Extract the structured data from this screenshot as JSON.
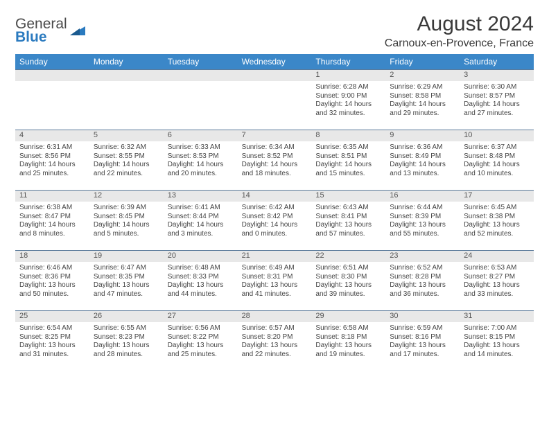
{
  "logo": {
    "text_top": "General",
    "text_bottom": "Blue"
  },
  "title": "August 2024",
  "location": "Carnoux-en-Provence, France",
  "colors": {
    "header_bg": "#3b87c8",
    "header_text": "#ffffff",
    "daynum_bg": "#e8e8e8",
    "row_border": "#5a7a9a",
    "logo_accent": "#2a7abf",
    "text": "#3a3a3a"
  },
  "weekdays": [
    "Sunday",
    "Monday",
    "Tuesday",
    "Wednesday",
    "Thursday",
    "Friday",
    "Saturday"
  ],
  "weeks": [
    [
      {
        "n": "",
        "sr": "",
        "ss": "",
        "dl": ""
      },
      {
        "n": "",
        "sr": "",
        "ss": "",
        "dl": ""
      },
      {
        "n": "",
        "sr": "",
        "ss": "",
        "dl": ""
      },
      {
        "n": "",
        "sr": "",
        "ss": "",
        "dl": ""
      },
      {
        "n": "1",
        "sr": "Sunrise: 6:28 AM",
        "ss": "Sunset: 9:00 PM",
        "dl": "Daylight: 14 hours and 32 minutes."
      },
      {
        "n": "2",
        "sr": "Sunrise: 6:29 AM",
        "ss": "Sunset: 8:58 PM",
        "dl": "Daylight: 14 hours and 29 minutes."
      },
      {
        "n": "3",
        "sr": "Sunrise: 6:30 AM",
        "ss": "Sunset: 8:57 PM",
        "dl": "Daylight: 14 hours and 27 minutes."
      }
    ],
    [
      {
        "n": "4",
        "sr": "Sunrise: 6:31 AM",
        "ss": "Sunset: 8:56 PM",
        "dl": "Daylight: 14 hours and 25 minutes."
      },
      {
        "n": "5",
        "sr": "Sunrise: 6:32 AM",
        "ss": "Sunset: 8:55 PM",
        "dl": "Daylight: 14 hours and 22 minutes."
      },
      {
        "n": "6",
        "sr": "Sunrise: 6:33 AM",
        "ss": "Sunset: 8:53 PM",
        "dl": "Daylight: 14 hours and 20 minutes."
      },
      {
        "n": "7",
        "sr": "Sunrise: 6:34 AM",
        "ss": "Sunset: 8:52 PM",
        "dl": "Daylight: 14 hours and 18 minutes."
      },
      {
        "n": "8",
        "sr": "Sunrise: 6:35 AM",
        "ss": "Sunset: 8:51 PM",
        "dl": "Daylight: 14 hours and 15 minutes."
      },
      {
        "n": "9",
        "sr": "Sunrise: 6:36 AM",
        "ss": "Sunset: 8:49 PM",
        "dl": "Daylight: 14 hours and 13 minutes."
      },
      {
        "n": "10",
        "sr": "Sunrise: 6:37 AM",
        "ss": "Sunset: 8:48 PM",
        "dl": "Daylight: 14 hours and 10 minutes."
      }
    ],
    [
      {
        "n": "11",
        "sr": "Sunrise: 6:38 AM",
        "ss": "Sunset: 8:47 PM",
        "dl": "Daylight: 14 hours and 8 minutes."
      },
      {
        "n": "12",
        "sr": "Sunrise: 6:39 AM",
        "ss": "Sunset: 8:45 PM",
        "dl": "Daylight: 14 hours and 5 minutes."
      },
      {
        "n": "13",
        "sr": "Sunrise: 6:41 AM",
        "ss": "Sunset: 8:44 PM",
        "dl": "Daylight: 14 hours and 3 minutes."
      },
      {
        "n": "14",
        "sr": "Sunrise: 6:42 AM",
        "ss": "Sunset: 8:42 PM",
        "dl": "Daylight: 14 hours and 0 minutes."
      },
      {
        "n": "15",
        "sr": "Sunrise: 6:43 AM",
        "ss": "Sunset: 8:41 PM",
        "dl": "Daylight: 13 hours and 57 minutes."
      },
      {
        "n": "16",
        "sr": "Sunrise: 6:44 AM",
        "ss": "Sunset: 8:39 PM",
        "dl": "Daylight: 13 hours and 55 minutes."
      },
      {
        "n": "17",
        "sr": "Sunrise: 6:45 AM",
        "ss": "Sunset: 8:38 PM",
        "dl": "Daylight: 13 hours and 52 minutes."
      }
    ],
    [
      {
        "n": "18",
        "sr": "Sunrise: 6:46 AM",
        "ss": "Sunset: 8:36 PM",
        "dl": "Daylight: 13 hours and 50 minutes."
      },
      {
        "n": "19",
        "sr": "Sunrise: 6:47 AM",
        "ss": "Sunset: 8:35 PM",
        "dl": "Daylight: 13 hours and 47 minutes."
      },
      {
        "n": "20",
        "sr": "Sunrise: 6:48 AM",
        "ss": "Sunset: 8:33 PM",
        "dl": "Daylight: 13 hours and 44 minutes."
      },
      {
        "n": "21",
        "sr": "Sunrise: 6:49 AM",
        "ss": "Sunset: 8:31 PM",
        "dl": "Daylight: 13 hours and 41 minutes."
      },
      {
        "n": "22",
        "sr": "Sunrise: 6:51 AM",
        "ss": "Sunset: 8:30 PM",
        "dl": "Daylight: 13 hours and 39 minutes."
      },
      {
        "n": "23",
        "sr": "Sunrise: 6:52 AM",
        "ss": "Sunset: 8:28 PM",
        "dl": "Daylight: 13 hours and 36 minutes."
      },
      {
        "n": "24",
        "sr": "Sunrise: 6:53 AM",
        "ss": "Sunset: 8:27 PM",
        "dl": "Daylight: 13 hours and 33 minutes."
      }
    ],
    [
      {
        "n": "25",
        "sr": "Sunrise: 6:54 AM",
        "ss": "Sunset: 8:25 PM",
        "dl": "Daylight: 13 hours and 31 minutes."
      },
      {
        "n": "26",
        "sr": "Sunrise: 6:55 AM",
        "ss": "Sunset: 8:23 PM",
        "dl": "Daylight: 13 hours and 28 minutes."
      },
      {
        "n": "27",
        "sr": "Sunrise: 6:56 AM",
        "ss": "Sunset: 8:22 PM",
        "dl": "Daylight: 13 hours and 25 minutes."
      },
      {
        "n": "28",
        "sr": "Sunrise: 6:57 AM",
        "ss": "Sunset: 8:20 PM",
        "dl": "Daylight: 13 hours and 22 minutes."
      },
      {
        "n": "29",
        "sr": "Sunrise: 6:58 AM",
        "ss": "Sunset: 8:18 PM",
        "dl": "Daylight: 13 hours and 19 minutes."
      },
      {
        "n": "30",
        "sr": "Sunrise: 6:59 AM",
        "ss": "Sunset: 8:16 PM",
        "dl": "Daylight: 13 hours and 17 minutes."
      },
      {
        "n": "31",
        "sr": "Sunrise: 7:00 AM",
        "ss": "Sunset: 8:15 PM",
        "dl": "Daylight: 13 hours and 14 minutes."
      }
    ]
  ]
}
